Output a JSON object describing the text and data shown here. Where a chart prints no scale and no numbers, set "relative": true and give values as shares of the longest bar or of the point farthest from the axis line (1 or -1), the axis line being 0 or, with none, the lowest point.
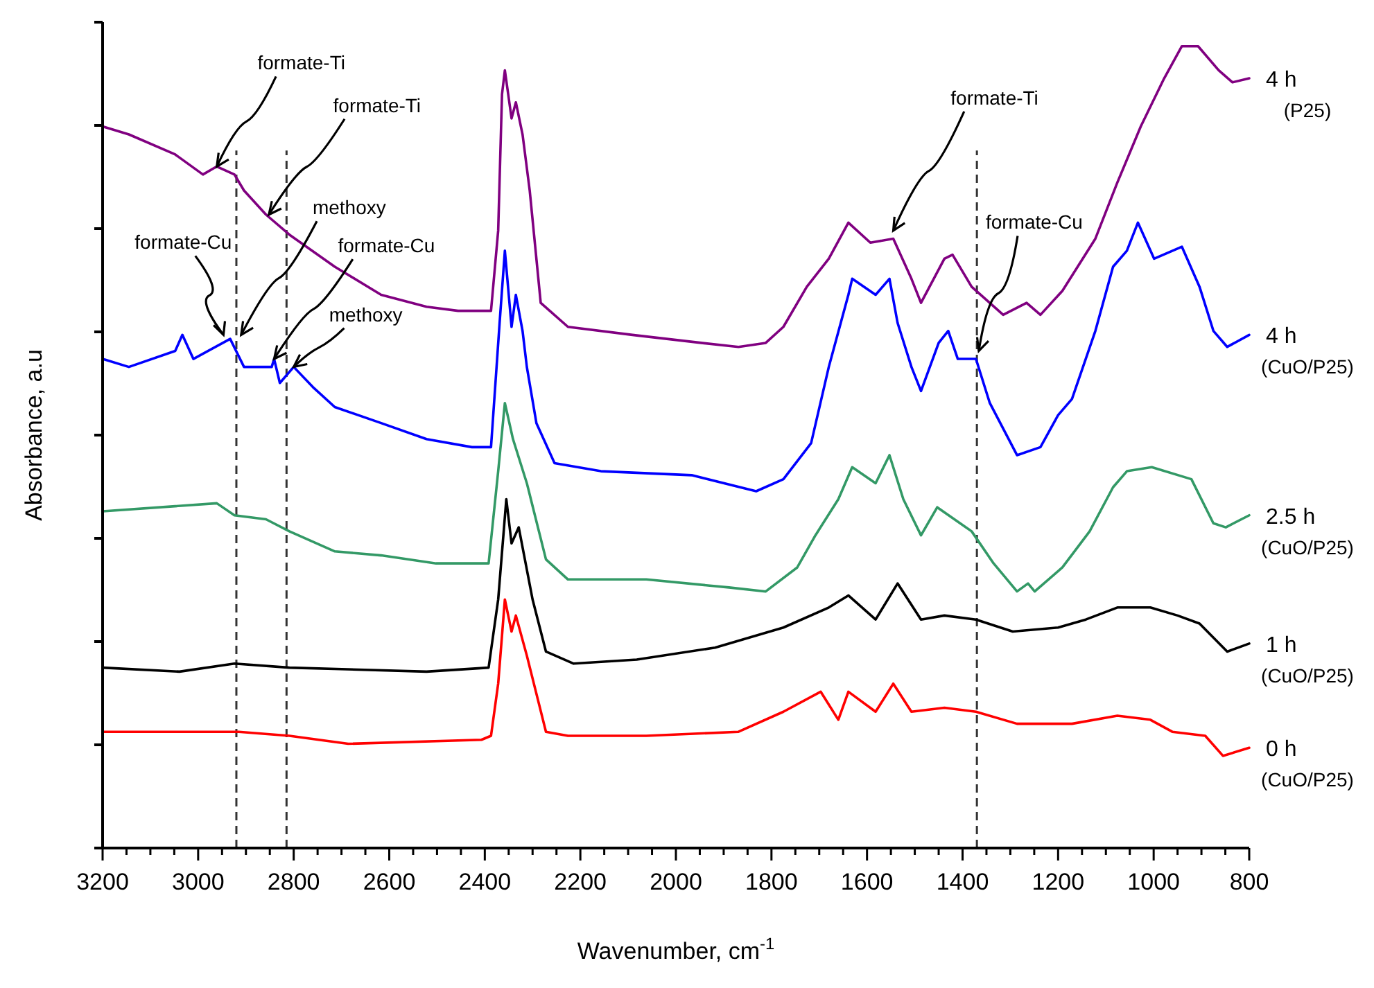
{
  "chart_data": {
    "type": "line",
    "relative": true,
    "xlabel": "Wavenumber, cm$^{-1}$",
    "ylabel": "Absorbance, a.u",
    "xlim": [
      3200,
      800
    ],
    "xticks": [
      3200,
      {
        "value": 3150,
        "label": null
      },
      {
        "value": 3100,
        "label": null
      },
      {
        "value": 3050,
        "label": null
      },
      3000,
      {
        "value": 2950,
        "label": null
      },
      {
        "value": 2900,
        "label": null
      },
      {
        "value": 2850,
        "label": null
      },
      2800,
      {
        "value": 2750,
        "label": null
      },
      {
        "value": 2700,
        "label": null
      },
      {
        "value": 2650,
        "label": null
      },
      2600,
      {
        "value": 2550,
        "label": null
      },
      {
        "value": 2500,
        "label": null
      },
      {
        "value": 2450,
        "label": null
      },
      2400,
      {
        "value": 2350,
        "label": null
      },
      {
        "value": 2300,
        "label": null
      },
      {
        "value": 2250,
        "label": null
      },
      2200,
      {
        "value": 2150,
        "label": null
      },
      {
        "value": 2100,
        "label": null
      },
      {
        "value": 2050,
        "label": null
      },
      2000,
      {
        "value": 1950,
        "label": null
      },
      {
        "value": 1900,
        "label": null
      },
      {
        "value": 1850,
        "label": null
      },
      1800,
      {
        "value": 1750,
        "label": null
      },
      {
        "value": 1700,
        "label": null
      },
      {
        "value": 1650,
        "label": null
      },
      1600,
      {
        "value": 1550,
        "label": null
      },
      {
        "value": 1500,
        "label": null
      },
      {
        "value": 1450,
        "label": null
      },
      1400,
      {
        "value": 1350,
        "label": null
      },
      {
        "value": 1300,
        "label": null
      },
      {
        "value": 1250,
        "label": null
      },
      1200,
      {
        "value": 1150,
        "label": null
      },
      {
        "value": 1100,
        "label": null
      },
      {
        "value": 1050,
        "label": null
      },
      1000,
      {
        "value": 950,
        "label": null
      },
      {
        "value": 900,
        "label": null
      },
      {
        "value": 850,
        "label": null
      },
      800
    ],
    "grid": false,
    "marker": "none",
    "line_style": "solid",
    "series": [
      {
        "name": "4 h (P25)",
        "color": "#800080",
        "x": [
          3200,
          3145,
          3048,
          2990,
          2961,
          2924,
          2904,
          2858,
          2809,
          2714,
          2617,
          2522,
          2456,
          2387,
          2372,
          2364,
          2358,
          2344,
          2335,
          2321,
          2306,
          2283,
          2226,
          2091,
          1947,
          1869,
          1812,
          1775,
          1726,
          1680,
          1639,
          1593,
          1545,
          1507,
          1487,
          1438,
          1421,
          1381,
          1315,
          1266,
          1237,
          1191,
          1122,
          1076,
          1027,
          978,
          941,
          907,
          864,
          835,
          800
        ],
        "values": [
          0.9,
          0.89,
          0.865,
          0.84,
          0.85,
          0.84,
          0.82,
          0.79,
          0.765,
          0.725,
          0.69,
          0.675,
          0.67,
          0.67,
          0.77,
          0.94,
          0.97,
          0.91,
          0.93,
          0.89,
          0.82,
          0.68,
          0.65,
          0.64,
          0.63,
          0.625,
          0.63,
          0.65,
          0.7,
          0.735,
          0.78,
          0.755,
          0.76,
          0.71,
          0.68,
          0.735,
          0.74,
          0.7,
          0.665,
          0.68,
          0.665,
          0.695,
          0.76,
          0.83,
          0.9,
          0.96,
          1.0,
          1.0,
          0.97,
          0.955,
          0.96
        ]
      },
      {
        "name": "4 h (CuO/P25)",
        "color": "#0000ff",
        "x": [
          3200,
          3145,
          3048,
          3033,
          3010,
          2933,
          2904,
          2846,
          2841,
          2829,
          2800,
          2760,
          2714,
          2617,
          2522,
          2427,
          2387,
          2369,
          2358,
          2344,
          2335,
          2321,
          2312,
          2292,
          2254,
          2157,
          1967,
          1832,
          1775,
          1717,
          1680,
          1639,
          1631,
          1582,
          1553,
          1536,
          1507,
          1487,
          1450,
          1430,
          1410,
          1372,
          1343,
          1286,
          1237,
          1200,
          1171,
          1122,
          1085,
          1056,
          1033,
          999,
          941,
          904,
          875,
          846,
          800
        ],
        "values": [
          0.61,
          0.6,
          0.62,
          0.64,
          0.61,
          0.635,
          0.6,
          0.6,
          0.61,
          0.58,
          0.6,
          0.575,
          0.55,
          0.53,
          0.51,
          0.5,
          0.5,
          0.655,
          0.745,
          0.65,
          0.69,
          0.645,
          0.6,
          0.53,
          0.48,
          0.47,
          0.465,
          0.445,
          0.46,
          0.505,
          0.6,
          0.69,
          0.71,
          0.69,
          0.71,
          0.655,
          0.6,
          0.57,
          0.63,
          0.645,
          0.61,
          0.61,
          0.555,
          0.49,
          0.5,
          0.54,
          0.56,
          0.645,
          0.725,
          0.745,
          0.78,
          0.735,
          0.75,
          0.7,
          0.645,
          0.625,
          0.64
        ]
      },
      {
        "name": "2.5 h (CuO/P25)",
        "color": "#339966",
        "x": [
          3200,
          2961,
          2924,
          2858,
          2809,
          2714,
          2617,
          2502,
          2392,
          2372,
          2358,
          2341,
          2312,
          2272,
          2226,
          2062,
          1889,
          1812,
          1746,
          1708,
          1660,
          1631,
          1582,
          1553,
          1524,
          1487,
          1453,
          1381,
          1335,
          1286,
          1263,
          1249,
          1191,
          1134,
          1085,
          1056,
          1004,
          921,
          875,
          849,
          800
        ],
        "values": [
          0.42,
          0.43,
          0.415,
          0.41,
          0.395,
          0.37,
          0.365,
          0.355,
          0.355,
          0.47,
          0.555,
          0.51,
          0.455,
          0.36,
          0.335,
          0.335,
          0.325,
          0.32,
          0.35,
          0.39,
          0.435,
          0.475,
          0.455,
          0.49,
          0.435,
          0.39,
          0.425,
          0.395,
          0.355,
          0.32,
          0.33,
          0.32,
          0.35,
          0.395,
          0.45,
          0.47,
          0.475,
          0.46,
          0.405,
          0.4,
          0.415
        ]
      },
      {
        "name": "1 h (CuO/P25)",
        "color": "#000000",
        "x": [
          3200,
          3039,
          2924,
          2809,
          2522,
          2392,
          2372,
          2355,
          2344,
          2329,
          2300,
          2272,
          2214,
          2082,
          1918,
          1775,
          1680,
          1639,
          1582,
          1536,
          1487,
          1438,
          1372,
          1295,
          1200,
          1142,
          1076,
          1007,
          950,
          904,
          846,
          800
        ],
        "values": [
          0.225,
          0.22,
          0.23,
          0.225,
          0.22,
          0.225,
          0.31,
          0.435,
          0.38,
          0.4,
          0.31,
          0.245,
          0.23,
          0.235,
          0.25,
          0.275,
          0.3,
          0.315,
          0.285,
          0.33,
          0.285,
          0.29,
          0.285,
          0.27,
          0.275,
          0.285,
          0.3,
          0.3,
          0.29,
          0.28,
          0.245,
          0.255
        ]
      },
      {
        "name": "0 h (CuO/P25)",
        "color": "#ff0000",
        "x": [
          3200,
          2915,
          2809,
          2686,
          2407,
          2387,
          2372,
          2358,
          2344,
          2335,
          2312,
          2272,
          2226,
          2062,
          1869,
          1775,
          1697,
          1660,
          1639,
          1582,
          1545,
          1507,
          1438,
          1372,
          1286,
          1171,
          1076,
          1007,
          961,
          892,
          855,
          800
        ],
        "values": [
          0.145,
          0.145,
          0.14,
          0.13,
          0.135,
          0.14,
          0.205,
          0.31,
          0.27,
          0.29,
          0.24,
          0.145,
          0.14,
          0.14,
          0.145,
          0.17,
          0.195,
          0.16,
          0.195,
          0.17,
          0.205,
          0.17,
          0.175,
          0.17,
          0.155,
          0.155,
          0.165,
          0.16,
          0.145,
          0.14,
          0.115,
          0.125
        ]
      }
    ],
    "ref_lines": [
      {
        "axis": "x",
        "value": 2920,
        "line_style": "dashed"
      },
      {
        "axis": "x",
        "value": 2815,
        "line_style": "dashed"
      },
      {
        "axis": "x",
        "value": 1370,
        "line_style": "dashed"
      }
    ],
    "annotations": [
      {
        "text": "formate-Ti",
        "x": 2961,
        "y": 0.85
      },
      {
        "text": "formate-Ti",
        "x": 2852,
        "y": 0.79
      },
      {
        "text": "methoxy",
        "x": 2910,
        "y": 0.64
      },
      {
        "text": "formate-Cu",
        "x": 2947,
        "y": 0.64
      },
      {
        "text": "formate-Cu",
        "x": 2841,
        "y": 0.61
      },
      {
        "text": "methoxy",
        "x": 2800,
        "y": 0.6
      },
      {
        "text": "formate-Ti",
        "x": 1545,
        "y": 0.77
      },
      {
        "text": "formate-Cu",
        "x": 1366,
        "y": 0.62
      }
    ]
  }
}
